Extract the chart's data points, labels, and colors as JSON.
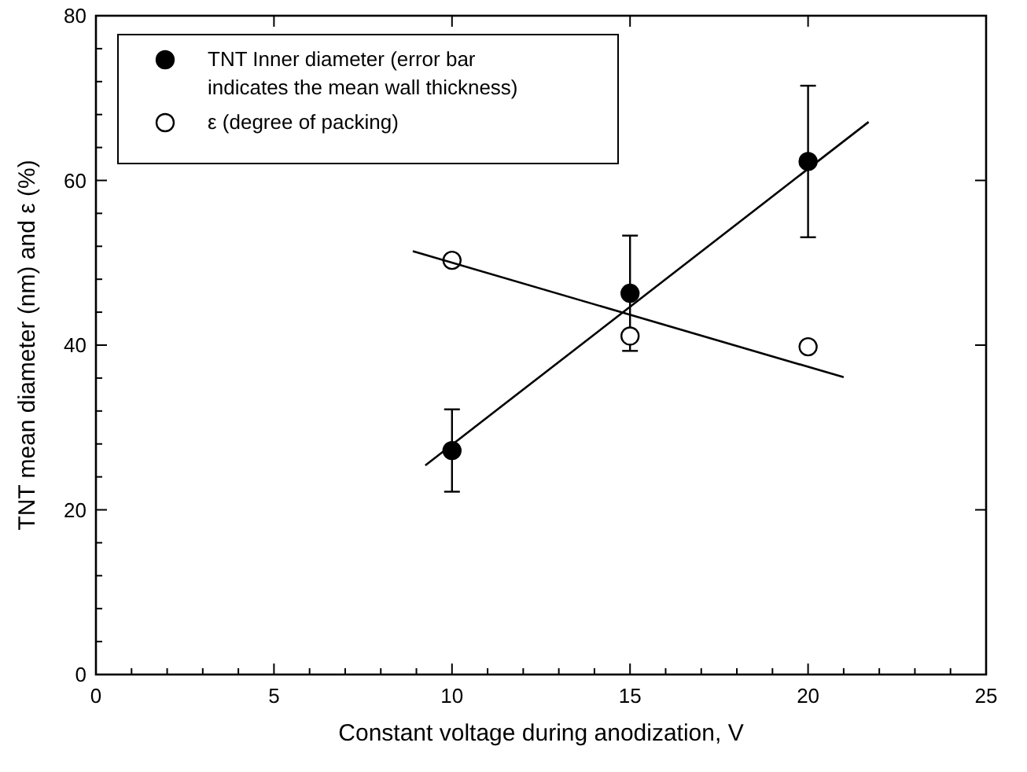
{
  "chart_data": {
    "type": "scatter",
    "xlabel": "Constant voltage during anodization, V",
    "ylabel": "TNT mean diameter (nm) and ε (%)",
    "xlim": [
      0,
      25
    ],
    "ylim": [
      0,
      80
    ],
    "xticks": [
      0,
      {
        "value": 1,
        "label": null
      },
      {
        "value": 2,
        "label": null
      },
      {
        "value": 3,
        "label": null
      },
      {
        "value": 4,
        "label": null
      },
      5,
      {
        "value": 6,
        "label": null
      },
      {
        "value": 7,
        "label": null
      },
      {
        "value": 8,
        "label": null
      },
      {
        "value": 9,
        "label": null
      },
      10,
      {
        "value": 11,
        "label": null
      },
      {
        "value": 12,
        "label": null
      },
      {
        "value": 13,
        "label": null
      },
      {
        "value": 14,
        "label": null
      },
      15,
      {
        "value": 16,
        "label": null
      },
      {
        "value": 17,
        "label": null
      },
      {
        "value": 18,
        "label": null
      },
      {
        "value": 19,
        "label": null
      },
      20,
      {
        "value": 21,
        "label": null
      },
      {
        "value": 22,
        "label": null
      },
      {
        "value": 23,
        "label": null
      },
      {
        "value": 24,
        "label": null
      },
      25
    ],
    "yticks": [
      0,
      {
        "value": 4,
        "label": null
      },
      {
        "value": 8,
        "label": null
      },
      {
        "value": 12,
        "label": null
      },
      {
        "value": 16,
        "label": null
      },
      20,
      {
        "value": 24,
        "label": null
      },
      {
        "value": 28,
        "label": null
      },
      {
        "value": 32,
        "label": null
      },
      {
        "value": 36,
        "label": null
      },
      40,
      {
        "value": 44,
        "label": null
      },
      {
        "value": 48,
        "label": null
      },
      {
        "value": 52,
        "label": null
      },
      {
        "value": 56,
        "label": null
      },
      60,
      {
        "value": 64,
        "label": null
      },
      {
        "value": 68,
        "label": null
      },
      {
        "value": 72,
        "label": null
      },
      {
        "value": 76,
        "label": null
      },
      80
    ],
    "grid": false,
    "legend": "top left",
    "series": [
      {
        "name": "TNT Inner diameter (error bar indicates the mean wall thickness)",
        "marker": "circle",
        "color": "#000000",
        "x": [
          10,
          15,
          20
        ],
        "values": [
          27.2,
          46.3,
          62.3
        ],
        "errors": [
          5,
          7,
          9.2
        ]
      },
      {
        "name": "ε (degree of packing)",
        "marker": "circle",
        "color": "#ffffff",
        "x": [
          10,
          15,
          20
        ],
        "values": [
          50.3,
          41.1,
          39.8
        ]
      },
      {
        "type": "line",
        "color": "#000000",
        "line_style": "solid",
        "marker": "none",
        "x": [
          9.25,
          21.7
        ],
        "values": [
          25.4,
          67.1
        ]
      },
      {
        "type": "line",
        "color": "#000000",
        "line_style": "solid",
        "marker": "none",
        "x": [
          8.9,
          21
        ],
        "values": [
          51.4,
          36.1
        ]
      }
    ]
  }
}
